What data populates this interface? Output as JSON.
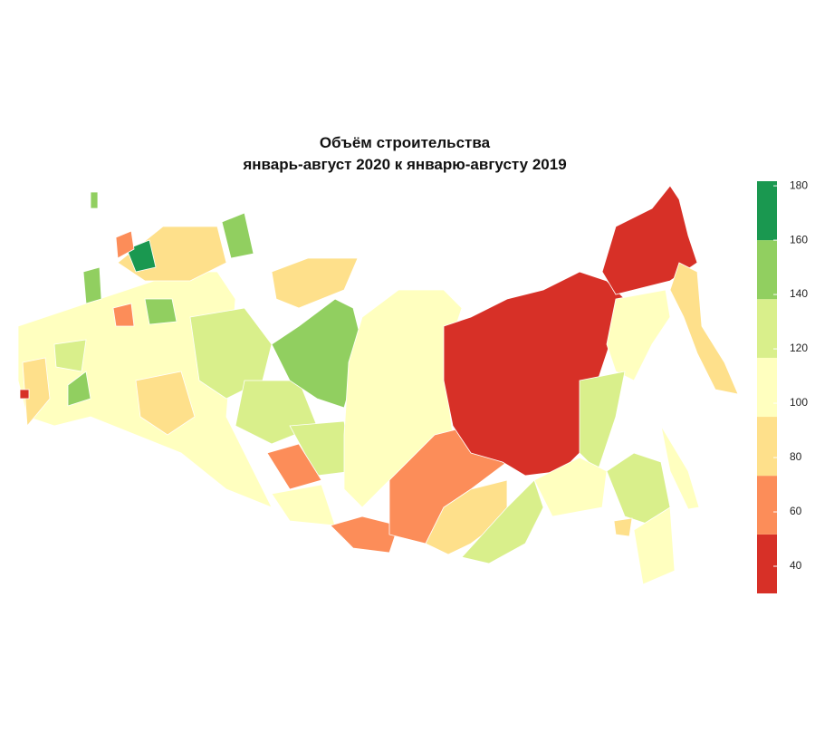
{
  "legend": {
    "bins": [
      30,
      51.7,
      73.3,
      95,
      116.7,
      138.3,
      160,
      181.7
    ],
    "colors": [
      "#d73027",
      "#fc8d59",
      "#fee08b",
      "#ffffbf",
      "#d9ef8b",
      "#91cf60",
      "#1a9850"
    ],
    "ticks": [
      40,
      60,
      80,
      100,
      120,
      140,
      160,
      180
    ]
  },
  "title": [
    "Объём строительства",
    "январь-август 2020 к январю-августу 2019"
  ]
}
